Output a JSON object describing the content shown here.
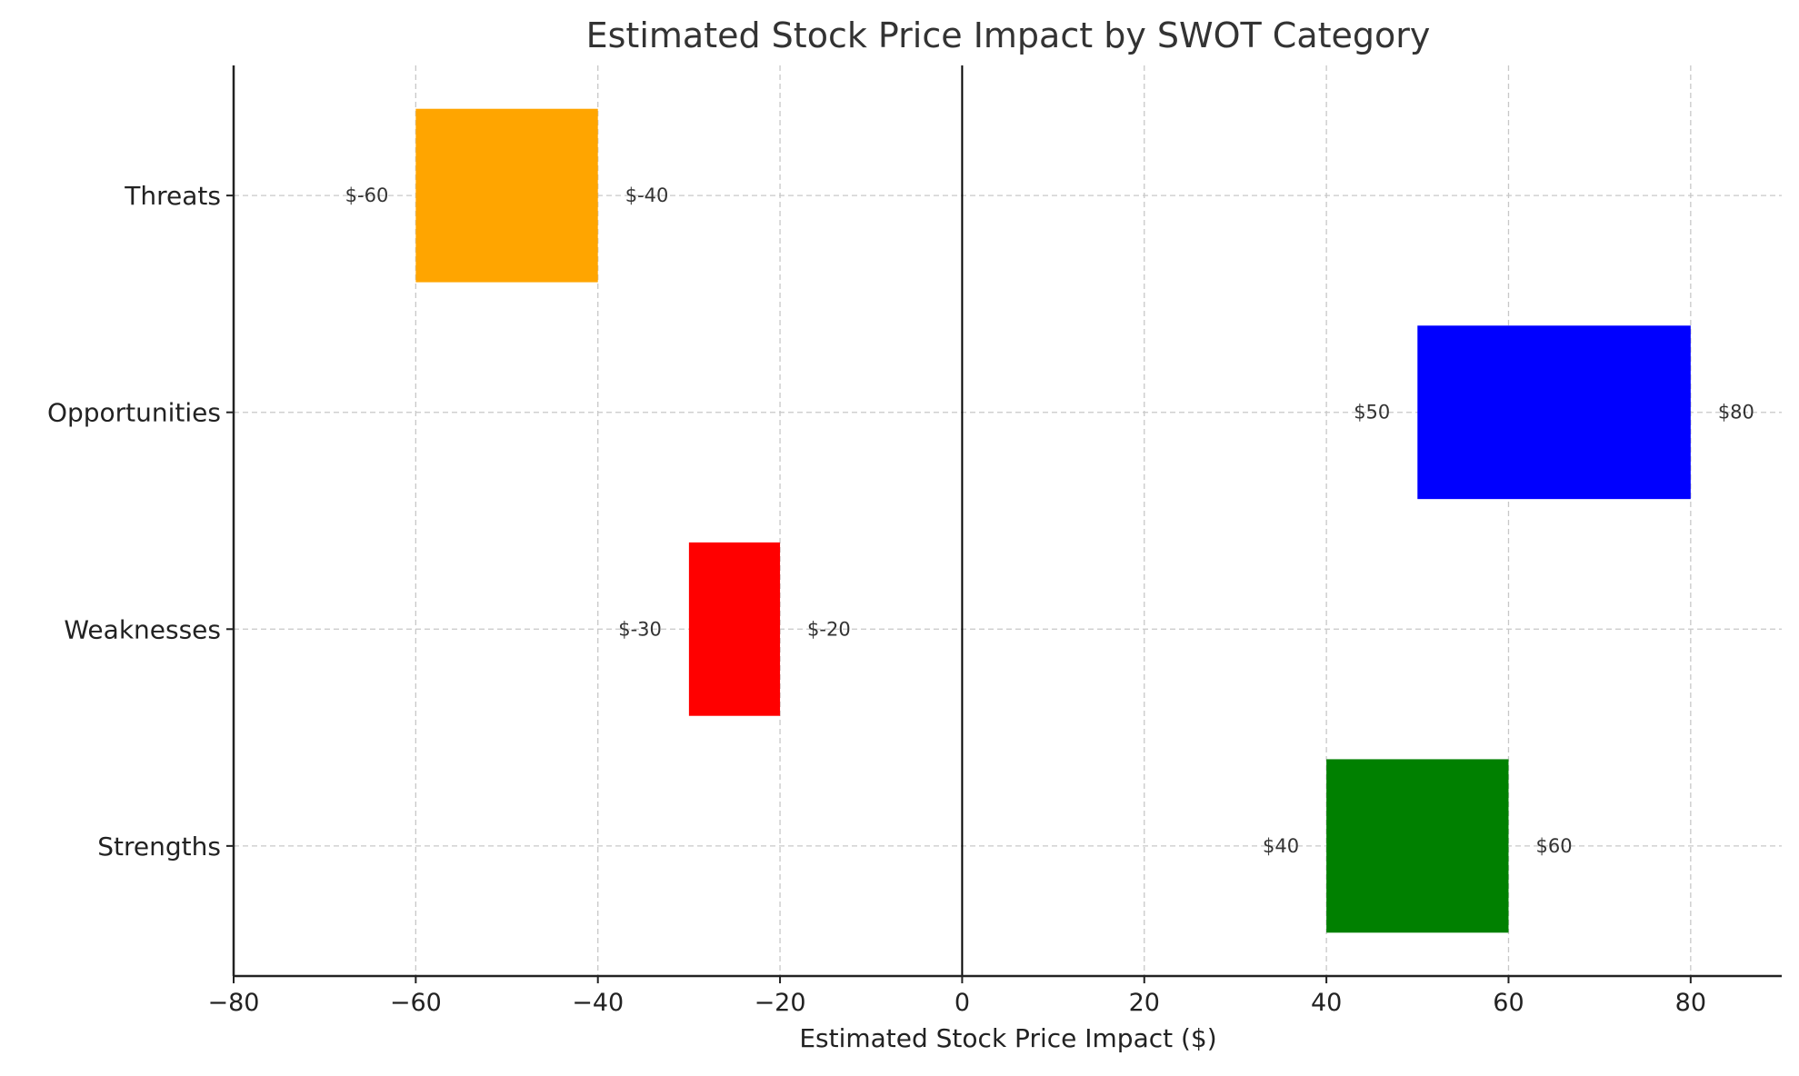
{
  "chart_data": {
    "type": "bar",
    "orientation": "horizontal",
    "title": "Estimated Stock Price Impact by SWOT Category",
    "xlabel": "Estimated Stock Price Impact ($)",
    "ylabel": "",
    "xlim": [
      -80,
      90
    ],
    "xticks": [
      -80,
      -60,
      -40,
      -20,
      0,
      20,
      40,
      60,
      80
    ],
    "xtick_labels": [
      "−80",
      "−60",
      "−40",
      "−20",
      "0",
      "20",
      "40",
      "60",
      "80"
    ],
    "grid": true,
    "zero_line": true,
    "categories": [
      "Strengths",
      "Weaknesses",
      "Opportunities",
      "Threats"
    ],
    "ranges": [
      {
        "category": "Strengths",
        "low": 40,
        "high": 60,
        "low_label": "$40",
        "high_label": "$60",
        "color": "#008000"
      },
      {
        "category": "Weaknesses",
        "low": -30,
        "high": -20,
        "low_label": "$-30",
        "high_label": "$-20",
        "color": "#ff0000"
      },
      {
        "category": "Opportunities",
        "low": 50,
        "high": 80,
        "low_label": "$50",
        "high_label": "$80",
        "color": "#0000ff"
      },
      {
        "category": "Threats",
        "low": -60,
        "high": -40,
        "low_label": "$-60",
        "high_label": "$-40",
        "color": "#ffa500"
      }
    ]
  }
}
